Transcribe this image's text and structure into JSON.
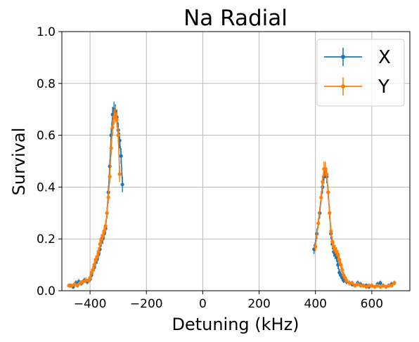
{
  "chart_data": {
    "type": "line",
    "title": "Na Radial",
    "xlabel": "Detuning (kHz)",
    "ylabel": "Survival",
    "xlim": [
      -500,
      735
    ],
    "ylim": [
      0,
      1.0
    ],
    "xticks": [
      -400,
      -200,
      0,
      200,
      400,
      600
    ],
    "xtick_labels": [
      "−400",
      "−200",
      "0",
      "200",
      "400",
      "600"
    ],
    "yticks": [
      0.0,
      0.2,
      0.4,
      0.6,
      0.8,
      1.0
    ],
    "ytick_labels": [
      "0.0",
      "0.2",
      "0.4",
      "0.6",
      "0.8",
      "1.0"
    ],
    "grid": true,
    "legend_position": "top-right",
    "series": [
      {
        "name": "X",
        "color": "#1f77b4",
        "segments": [
          {
            "x": [
              -470,
              -460,
              -450,
              -440,
              -430,
              -420,
              -410,
              -400,
              -395,
              -390,
              -385,
              -380,
              -375,
              -370,
              -365,
              -360,
              -355,
              -350,
              -345,
              -340,
              -335,
              -330,
              -325,
              -320,
              -315,
              -310,
              -305,
              -300,
              -295,
              -290,
              -285
            ],
            "y": [
              0.02,
              0.015,
              0.03,
              0.035,
              0.03,
              0.04,
              0.035,
              0.045,
              0.06,
              0.08,
              0.09,
              0.11,
              0.12,
              0.14,
              0.16,
              0.19,
              0.2,
              0.22,
              0.24,
              0.3,
              0.38,
              0.48,
              0.6,
              0.68,
              0.7,
              0.69,
              0.67,
              0.62,
              0.58,
              0.52,
              0.41
            ],
            "err": [
              0.008,
              0.008,
              0.01,
              0.01,
              0.01,
              0.01,
              0.01,
              0.012,
              0.014,
              0.015,
              0.015,
              0.016,
              0.016,
              0.018,
              0.018,
              0.02,
              0.02,
              0.02,
              0.02,
              0.022,
              0.025,
              0.025,
              0.028,
              0.03,
              0.03,
              0.03,
              0.03,
              0.03,
              0.03,
              0.03,
              0.03
            ]
          },
          {
            "x": [
              395,
              405,
              415,
              425,
              430,
              435,
              440,
              445,
              450,
              455,
              460,
              465,
              470,
              475,
              480,
              485,
              490,
              495,
              500,
              510,
              520,
              530,
              540,
              550,
              560,
              570,
              580,
              590,
              600,
              610,
              620,
              630,
              640,
              650,
              660,
              670,
              680
            ],
            "y": [
              0.16,
              0.22,
              0.3,
              0.4,
              0.44,
              0.47,
              0.44,
              0.38,
              0.3,
              0.22,
              0.18,
              0.15,
              0.14,
              0.13,
              0.1,
              0.07,
              0.06,
              0.05,
              0.04,
              0.035,
              0.03,
              0.025,
              0.02,
              0.03,
              0.025,
              0.02,
              0.02,
              0.015,
              0.02,
              0.015,
              0.025,
              0.03,
              0.02,
              0.015,
              0.02,
              0.025,
              0.03
            ],
            "err": [
              0.018,
              0.02,
              0.022,
              0.025,
              0.025,
              0.025,
              0.025,
              0.025,
              0.024,
              0.022,
              0.02,
              0.019,
              0.018,
              0.018,
              0.016,
              0.014,
              0.012,
              0.012,
              0.01,
              0.01,
              0.01,
              0.009,
              0.008,
              0.009,
              0.009,
              0.008,
              0.008,
              0.008,
              0.008,
              0.008,
              0.009,
              0.009,
              0.008,
              0.008,
              0.008,
              0.009,
              0.009
            ]
          }
        ]
      },
      {
        "name": "Y",
        "color": "#ff7f0e",
        "segments": [
          {
            "x": [
              -475,
              -465,
              -455,
              -445,
              -435,
              -425,
              -415,
              -405,
              -400,
              -395,
              -390,
              -385,
              -380,
              -375,
              -370,
              -365,
              -360,
              -355,
              -350,
              -345,
              -340,
              -335,
              -330,
              -325,
              -320,
              -315,
              -310,
              -305,
              -300,
              -295
            ],
            "y": [
              0.02,
              0.02,
              0.025,
              0.02,
              0.03,
              0.035,
              0.04,
              0.04,
              0.05,
              0.07,
              0.08,
              0.1,
              0.12,
              0.13,
              0.15,
              0.18,
              0.2,
              0.21,
              0.23,
              0.25,
              0.3,
              0.36,
              0.44,
              0.55,
              0.63,
              0.67,
              0.68,
              0.66,
              0.6,
              0.45
            ],
            "err": [
              0.008,
              0.008,
              0.009,
              0.008,
              0.01,
              0.01,
              0.012,
              0.012,
              0.013,
              0.014,
              0.015,
              0.016,
              0.016,
              0.017,
              0.018,
              0.02,
              0.02,
              0.02,
              0.02,
              0.022,
              0.022,
              0.024,
              0.025,
              0.028,
              0.03,
              0.03,
              0.03,
              0.03,
              0.03,
              0.03
            ]
          },
          {
            "x": [
              400,
              410,
              420,
              425,
              430,
              435,
              440,
              445,
              450,
              455,
              460,
              465,
              470,
              475,
              480,
              485,
              490,
              495,
              500,
              505,
              510,
              520,
              530,
              540,
              550,
              560,
              570,
              580,
              590,
              600,
              610,
              620,
              630,
              640,
              650,
              660,
              670,
              680
            ],
            "y": [
              0.17,
              0.26,
              0.36,
              0.42,
              0.47,
              0.47,
              0.45,
              0.38,
              0.3,
              0.23,
              0.19,
              0.17,
              0.16,
              0.15,
              0.14,
              0.12,
              0.1,
              0.08,
              0.06,
              0.05,
              0.04,
              0.03,
              0.03,
              0.02,
              0.025,
              0.02,
              0.02,
              0.015,
              0.02,
              0.02,
              0.015,
              0.02,
              0.015,
              0.02,
              0.015,
              0.02,
              0.02,
              0.03
            ],
            "err": [
              0.018,
              0.02,
              0.024,
              0.025,
              0.028,
              0.028,
              0.026,
              0.025,
              0.024,
              0.022,
              0.02,
              0.019,
              0.018,
              0.018,
              0.017,
              0.016,
              0.015,
              0.014,
              0.012,
              0.011,
              0.01,
              0.009,
              0.009,
              0.008,
              0.008,
              0.008,
              0.008,
              0.008,
              0.008,
              0.008,
              0.008,
              0.008,
              0.008,
              0.008,
              0.008,
              0.008,
              0.008,
              0.009
            ]
          }
        ]
      }
    ]
  }
}
